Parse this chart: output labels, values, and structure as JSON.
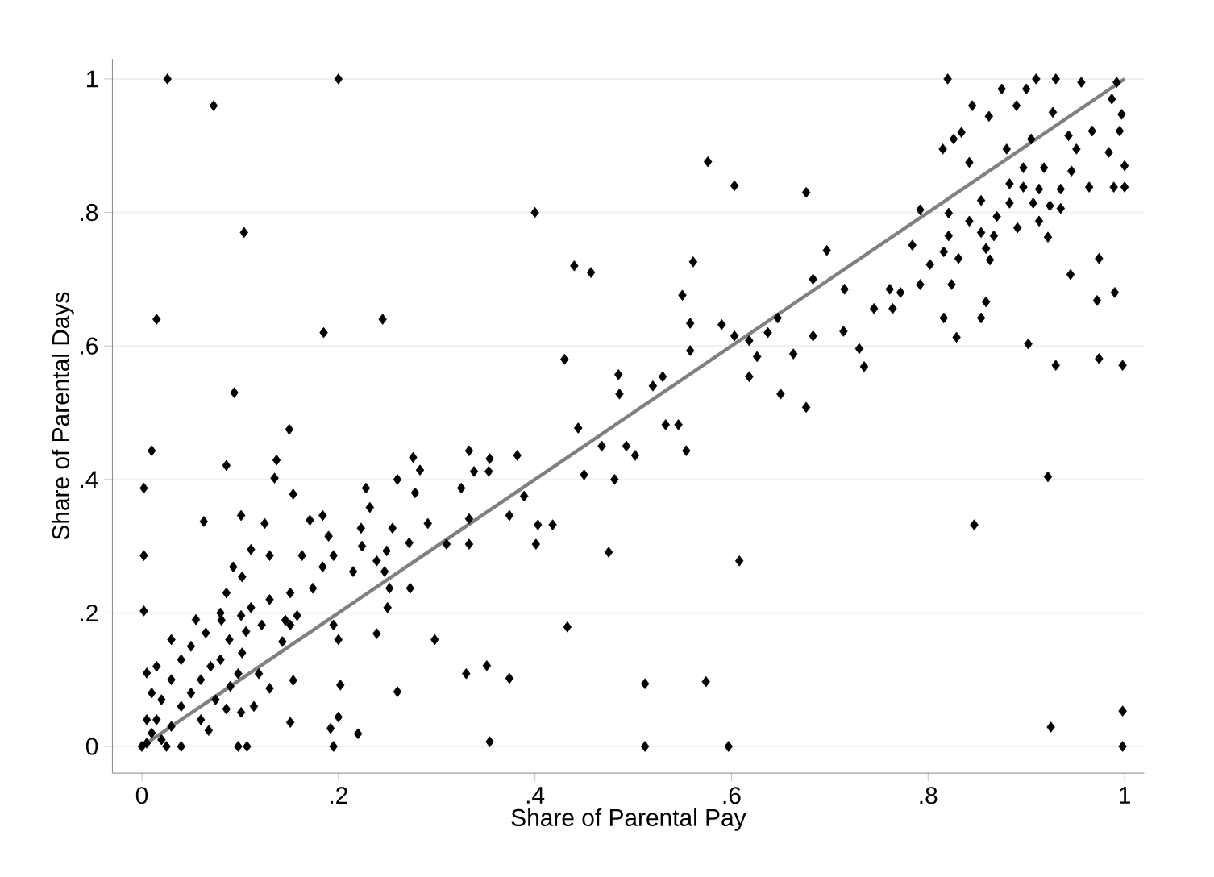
{
  "chart_data": {
    "type": "scatter",
    "xlabel": "Share of Parental Pay",
    "ylabel": "Share of Parental Days",
    "xlim": [
      -0.03,
      1.02
    ],
    "ylim": [
      -0.04,
      1.03
    ],
    "xticks": [
      0,
      {
        "value": 0.2,
        "label": ".2"
      },
      {
        "value": 0.4,
        "label": ".4"
      },
      {
        "value": 0.6,
        "label": ".6"
      },
      {
        "value": 0.8,
        "label": ".8"
      },
      1
    ],
    "yticks": [
      0,
      {
        "value": 0.2,
        "label": ".2"
      },
      {
        "value": 0.4,
        "label": ".4"
      },
      {
        "value": 0.6,
        "label": ".6"
      },
      {
        "value": 0.8,
        "label": ".8"
      },
      1
    ],
    "grid": "y",
    "series": [
      {
        "color": "#000000",
        "marker": "diamond",
        "x": [
          0.026,
          0.073,
          0.2,
          0.4,
          0.104,
          0.44,
          0.457,
          0.015,
          0.185,
          0.245,
          0.43,
          0.094,
          0.82,
          0.576,
          0.603,
          0.676,
          0.875,
          0.91,
          0.93,
          0.956,
          0.9,
          0.845,
          0.89,
          0.862,
          0.927,
          0.834,
          0.815,
          0.826,
          0.88,
          0.905,
          0.842,
          0.897,
          0.918,
          0.943,
          0.951,
          0.984,
          1.0,
          0.989,
          1.0,
          0.964,
          0.997,
          0.987,
          0.992,
          0.995,
          0.967,
          0.946,
          0.935,
          0.913,
          0.897,
          0.883,
          0.907,
          0.924,
          0.935,
          0.883,
          0.87,
          0.891,
          0.922,
          0.913,
          0.854,
          0.842,
          0.854,
          0.867,
          0.859,
          0.863,
          0.821,
          0.821,
          0.816,
          0.831,
          0.792,
          0.784,
          0.802,
          0.824,
          0.792,
          0.859,
          0.854,
          0.816,
          0.829,
          0.974,
          0.945,
          0.972,
          0.99,
          0.902,
          0.93,
          0.974,
          0.998,
          0.561,
          0.55,
          0.558,
          0.558,
          0.59,
          0.603,
          0.618,
          0.637,
          0.647,
          0.626,
          0.618,
          0.65,
          0.663,
          0.683,
          0.683,
          0.697,
          0.715,
          0.714,
          0.73,
          0.735,
          0.745,
          0.764,
          0.761,
          0.772,
          0.485,
          0.52,
          0.53,
          0.486,
          0.676,
          0.01,
          0.002,
          0.002,
          0.002,
          0.086,
          0.15,
          0.063,
          0.101,
          0.125,
          0.137,
          0.135,
          0.154,
          0.111,
          0.13,
          0.093,
          0.102,
          0.086,
          0.13,
          0.151,
          0.174,
          0.163,
          0.184,
          0.195,
          0.19,
          0.171,
          0.184,
          0.215,
          0.224,
          0.223,
          0.232,
          0.228,
          0.239,
          0.249,
          0.255,
          0.26,
          0.278,
          0.276,
          0.283,
          0.272,
          0.291,
          0.247,
          0.252,
          0.273,
          0.25,
          0.239,
          0.2,
          0.195,
          0.298,
          0.31,
          0.333,
          0.325,
          0.333,
          0.333,
          0.338,
          0.353,
          0.354,
          0.382,
          0.374,
          0.389,
          0.403,
          0.418,
          0.401,
          0.444,
          0.468,
          0.493,
          0.502,
          0.45,
          0.481,
          0.475,
          0.433,
          0.33,
          0.351,
          0.374,
          0.512,
          0.354,
          0.512,
          0.26,
          0.151,
          0.192,
          0.2,
          0.22,
          0.195,
          0.098,
          0.107,
          0.202,
          0.068,
          0.114,
          0.086,
          0.101,
          0.154,
          0.13,
          0.119,
          0.098,
          0.102,
          0.143,
          0.146,
          0.122,
          0.106,
          0.089,
          0.081,
          0.101,
          0.111,
          0.151,
          0.158,
          0.005,
          0.01,
          0.015,
          0.02,
          0.03,
          0.04,
          0.05,
          0.06,
          0.07,
          0.02,
          0.03,
          0.04,
          0.05,
          0.08,
          0.09,
          0.0,
          0.005,
          0.01,
          0.025,
          0.04,
          0.06,
          0.075,
          0.015,
          0.03,
          0.055,
          0.065,
          0.08,
          0.005,
          0.922,
          0.847,
          0.608,
          0.574,
          0.597,
          0.925,
          0.998,
          0.998,
          0.533,
          0.546,
          0.554
        ],
        "values": [
          1.0,
          0.96,
          1.0,
          0.8,
          0.77,
          0.72,
          0.71,
          0.64,
          0.62,
          0.64,
          0.58,
          0.53,
          1.0,
          0.876,
          0.84,
          0.83,
          0.985,
          1.0,
          1.0,
          0.995,
          0.985,
          0.96,
          0.96,
          0.944,
          0.95,
          0.92,
          0.895,
          0.91,
          0.895,
          0.91,
          0.875,
          0.867,
          0.867,
          0.915,
          0.895,
          0.89,
          0.87,
          0.838,
          0.838,
          0.838,
          0.947,
          0.97,
          0.995,
          0.922,
          0.922,
          0.862,
          0.835,
          0.835,
          0.838,
          0.843,
          0.814,
          0.81,
          0.806,
          0.814,
          0.794,
          0.777,
          0.763,
          0.787,
          0.818,
          0.787,
          0.77,
          0.765,
          0.746,
          0.729,
          0.799,
          0.765,
          0.741,
          0.731,
          0.804,
          0.751,
          0.722,
          0.692,
          0.692,
          0.666,
          0.642,
          0.642,
          0.613,
          0.731,
          0.707,
          0.668,
          0.68,
          0.603,
          0.571,
          0.581,
          0.571,
          0.726,
          0.676,
          0.634,
          0.593,
          0.632,
          0.615,
          0.608,
          0.62,
          0.642,
          0.584,
          0.554,
          0.528,
          0.588,
          0.615,
          0.7,
          0.743,
          0.685,
          0.622,
          0.596,
          0.569,
          0.656,
          0.656,
          0.685,
          0.68,
          0.557,
          0.54,
          0.554,
          0.528,
          0.508,
          0.443,
          0.387,
          0.286,
          0.203,
          0.421,
          0.475,
          0.337,
          0.346,
          0.334,
          0.429,
          0.402,
          0.378,
          0.295,
          0.286,
          0.269,
          0.254,
          0.23,
          0.22,
          0.23,
          0.237,
          0.286,
          0.269,
          0.286,
          0.315,
          0.339,
          0.346,
          0.262,
          0.3,
          0.327,
          0.358,
          0.387,
          0.278,
          0.293,
          0.327,
          0.4,
          0.38,
          0.433,
          0.414,
          0.305,
          0.334,
          0.262,
          0.237,
          0.237,
          0.208,
          0.169,
          0.16,
          0.182,
          0.16,
          0.303,
          0.303,
          0.387,
          0.341,
          0.443,
          0.412,
          0.412,
          0.431,
          0.436,
          0.346,
          0.375,
          0.332,
          0.332,
          0.303,
          0.477,
          0.45,
          0.45,
          0.436,
          0.407,
          0.4,
          0.291,
          0.179,
          0.109,
          0.121,
          0.102,
          0.094,
          0.007,
          0.0,
          0.082,
          0.036,
          0.027,
          0.044,
          0.019,
          0.0,
          0.0,
          0.0,
          0.092,
          0.024,
          0.06,
          0.056,
          0.051,
          0.099,
          0.087,
          0.109,
          0.109,
          0.14,
          0.157,
          0.189,
          0.182,
          0.172,
          0.16,
          0.189,
          0.196,
          0.208,
          0.182,
          0.196,
          0.005,
          0.02,
          0.04,
          0.01,
          0.03,
          0.06,
          0.08,
          0.1,
          0.12,
          0.07,
          0.1,
          0.13,
          0.15,
          0.13,
          0.09,
          0.0,
          0.04,
          0.08,
          0.0,
          0.0,
          0.04,
          0.07,
          0.12,
          0.16,
          0.19,
          0.17,
          0.2,
          0.11,
          0.404,
          0.332,
          0.278,
          0.097,
          0.0,
          0.029,
          0.053,
          0.0,
          0.482,
          0.482,
          0.443
        ]
      },
      {
        "type": "line",
        "color": "#808080",
        "x": [
          0,
          1
        ],
        "values": [
          0,
          1.0
        ]
      }
    ]
  }
}
